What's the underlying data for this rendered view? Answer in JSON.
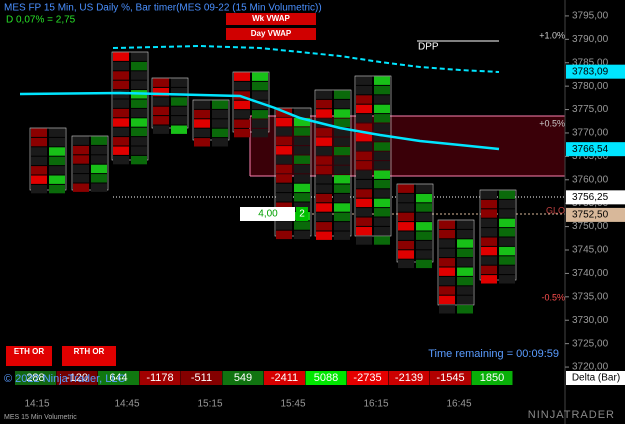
{
  "header": {
    "title": "MES FP 15 Min, US Daily %, Bar timer(MES 09-22 (15 Min Volumetric))",
    "daily": "D 0,07% = 2,75"
  },
  "price_axis": {
    "ylim": [
      3715.1,
      3798.4
    ],
    "ticks": [
      {
        "value": 3795,
        "label": "3795,00"
      },
      {
        "value": 3790,
        "label": "3790,00"
      },
      {
        "value": 3785,
        "label": "3785,00"
      },
      {
        "value": 3780,
        "label": "3780,00"
      },
      {
        "value": 3775,
        "label": "3775,00"
      },
      {
        "value": 3770,
        "label": "3770,00"
      },
      {
        "value": 3765,
        "label": "3765,00"
      },
      {
        "value": 3760,
        "label": "3760,00"
      },
      {
        "value": 3755,
        "label": "3755,00"
      },
      {
        "value": 3750,
        "label": "3750,00"
      },
      {
        "value": 3745,
        "label": "3745,00"
      },
      {
        "value": 3740,
        "label": "3740,00"
      },
      {
        "value": 3735,
        "label": "3735,00"
      },
      {
        "value": 3730,
        "label": "3730,00"
      },
      {
        "value": 3725,
        "label": "3725,00"
      },
      {
        "value": 3720,
        "label": "3720,00"
      }
    ]
  },
  "price_tags": [
    {
      "value": 3783.09,
      "label": "3783,09",
      "color": "#00e5ff"
    },
    {
      "value": 3766.54,
      "label": "3766,54",
      "color": "#00e5ff"
    },
    {
      "value": 3756.25,
      "label": "3756,25",
      "color": "#ffffff"
    },
    {
      "value": 3752.5,
      "label": "3752,50",
      "color": "#d8b89a"
    }
  ],
  "time_axis": [
    "14:15",
    "14:45",
    "15:15",
    "15:45",
    "16:15",
    "16:45"
  ],
  "labels": {
    "wk_vwap": "Wk VWAP",
    "day_vwap": "Day VWAP",
    "dpp": "DPP",
    "plus1": "+1.0%",
    "plus05": "+0.5%",
    "minus05": "-0.5%",
    "glo": "GLO",
    "eth_or": "ETH OR",
    "rth_or": "RTH OR",
    "timer": "Time remaining = 00:09:59",
    "copyright": "© 2022 NinjaTrader, LLC",
    "delta_label": "Delta (Bar)",
    "footer": "MES 15 Min Volumetric",
    "brand": "NINJATRADER",
    "tick_box": "4,00",
    "tick_count": "2"
  },
  "delta": [
    288,
    -120,
    644,
    -1178,
    -511,
    549,
    -2411,
    5088,
    -2735,
    -2139,
    -1545,
    1850
  ]
}
